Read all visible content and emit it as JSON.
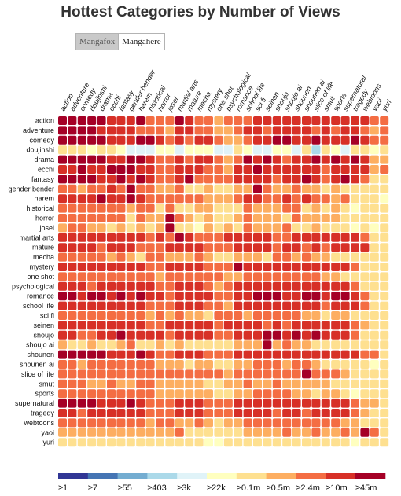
{
  "title": "Hottest Categories by Number of Views",
  "tabs": [
    {
      "label": "Mangafox",
      "active": true
    },
    {
      "label": "Mangahere",
      "active": false
    }
  ],
  "chart_data": {
    "type": "heatmap",
    "title": "Hottest Categories by Number of Views",
    "categories": [
      "action",
      "adventure",
      "comedy",
      "doujinshi",
      "drama",
      "ecchi",
      "fantasy",
      "gender bender",
      "harem",
      "historical",
      "horror",
      "josei",
      "martial arts",
      "mature",
      "mecha",
      "mystery",
      "one shot",
      "psychological",
      "romance",
      "school life",
      "sci fi",
      "seinen",
      "shoujo",
      "shoujo ai",
      "shounen",
      "shounen ai",
      "slice of life",
      "smut",
      "sports",
      "supernatural",
      "tragedy",
      "webtoons",
      "yaoi",
      "yuri"
    ],
    "colors": [
      "#313695",
      "#4575b4",
      "#74add1",
      "#abd9e9",
      "#e0f3f8",
      "#ffffbf",
      "#fee090",
      "#fdae61",
      "#f46d43",
      "#d73027",
      "#a50026"
    ],
    "legend": [
      "≥1",
      "≥7",
      "≥55",
      "≥403",
      "≥3k",
      "≥22k",
      "≥0.1m",
      "≥0.5m",
      "≥2.4m",
      "≥10m",
      "≥45m"
    ],
    "legend_position": "bottom",
    "level_matrix": [
      "AAAAA999A888A988788899999999999988776",
      "AAAA99998887998877899899998989987866",
      "AAAAA999AA989899877899AA99A999A9886",
      "6665665444554555446544554636546656",
      "AAAAA99AA9889899878A9A9899A9A9A9776",
      "99A99AAA998899988799A999999899997866",
      "AAAA99A9A9889A88889999899A989A9866",
      "8878898A887786676677A8778776766666",
      "9999A99A988888877789988989887866656",
      "88888887886866776668777886767656666",
      "88888886877A8767667877768777766666",
      "78877676767A6657676877786676665656",
      "999999999898A988899999889999999866",
      "9999899988899998889999899898999966",
      "88888787688777876677768878776666665",
      "999999999889999888A99999999999866",
      "8888888888788888877888888887766666",
      "9998999999889998789999999999998666",
      "AA9AA9A9A99899998899AAA99AA9AA9866",
      "999999999888999887999999999899986",
      "88888888878787768887888887767766",
      "9999999998899999899998989999998766",
      "998899A99998999988999AA9A9A999866",
      "766766786676766666777A7877666666",
      "AAAAA999A9889998889999999999999886",
      "8878888888777677667788878876666656",
      "8888888888888888878888888A8887666",
      "888778778877777667787787777766666",
      "88888888887777776677888877677656",
      "AAAA999A98889998889999999999998776",
      "9989999998889998889999899899998766",
      "8888888887887787677888888888877666",
      "7777777777778666666777787787787A8",
      "66666666666666655666666666666656"
    ]
  }
}
